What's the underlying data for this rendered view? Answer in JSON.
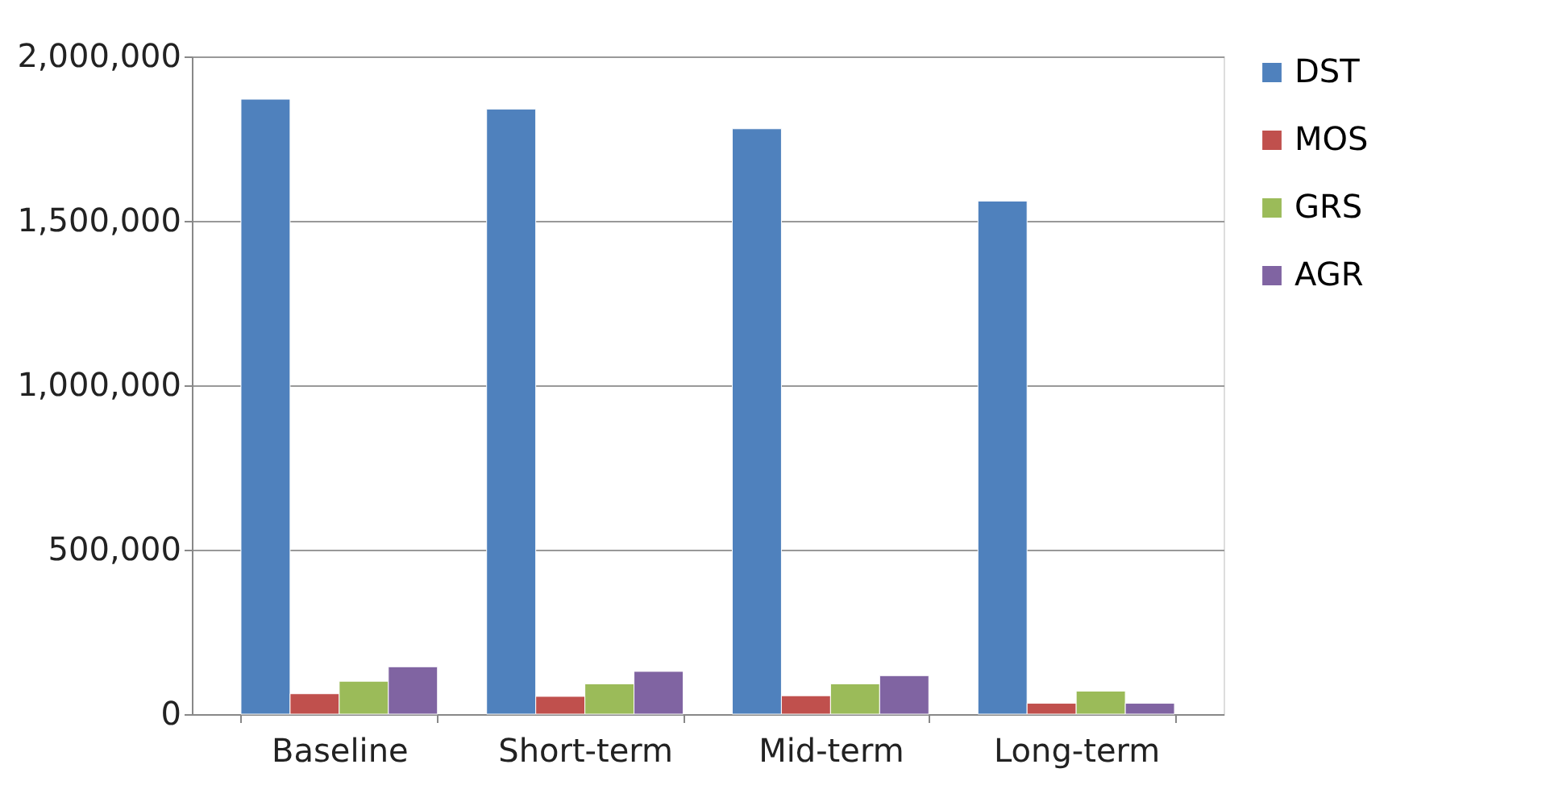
{
  "chart_data": {
    "type": "bar",
    "categories": [
      "Baseline",
      "Short-term",
      "Mid-term",
      "Long-term"
    ],
    "series": [
      {
        "name": "DST",
        "color": "#4f81bd",
        "values": [
          1870000,
          1840000,
          1780000,
          1560000
        ]
      },
      {
        "name": "MOS",
        "color": "#c0504d",
        "values": [
          62000,
          54000,
          56000,
          33000
        ]
      },
      {
        "name": "GRS",
        "color": "#9bbb59",
        "values": [
          100000,
          92000,
          92000,
          70000
        ]
      },
      {
        "name": "AGR",
        "color": "#8064a2",
        "values": [
          144000,
          130000,
          117000,
          33000
        ]
      }
    ],
    "ylim": [
      0,
      2000000
    ],
    "yticks": [
      0,
      {
        "value": 500000,
        "label": "500,000"
      },
      {
        "value": 1000000,
        "label": "1,000,000"
      },
      {
        "value": 1500000,
        "label": "1,500,000"
      },
      {
        "value": 2000000,
        "label": "2,000,000"
      }
    ],
    "grid": "y",
    "legend": "right"
  }
}
